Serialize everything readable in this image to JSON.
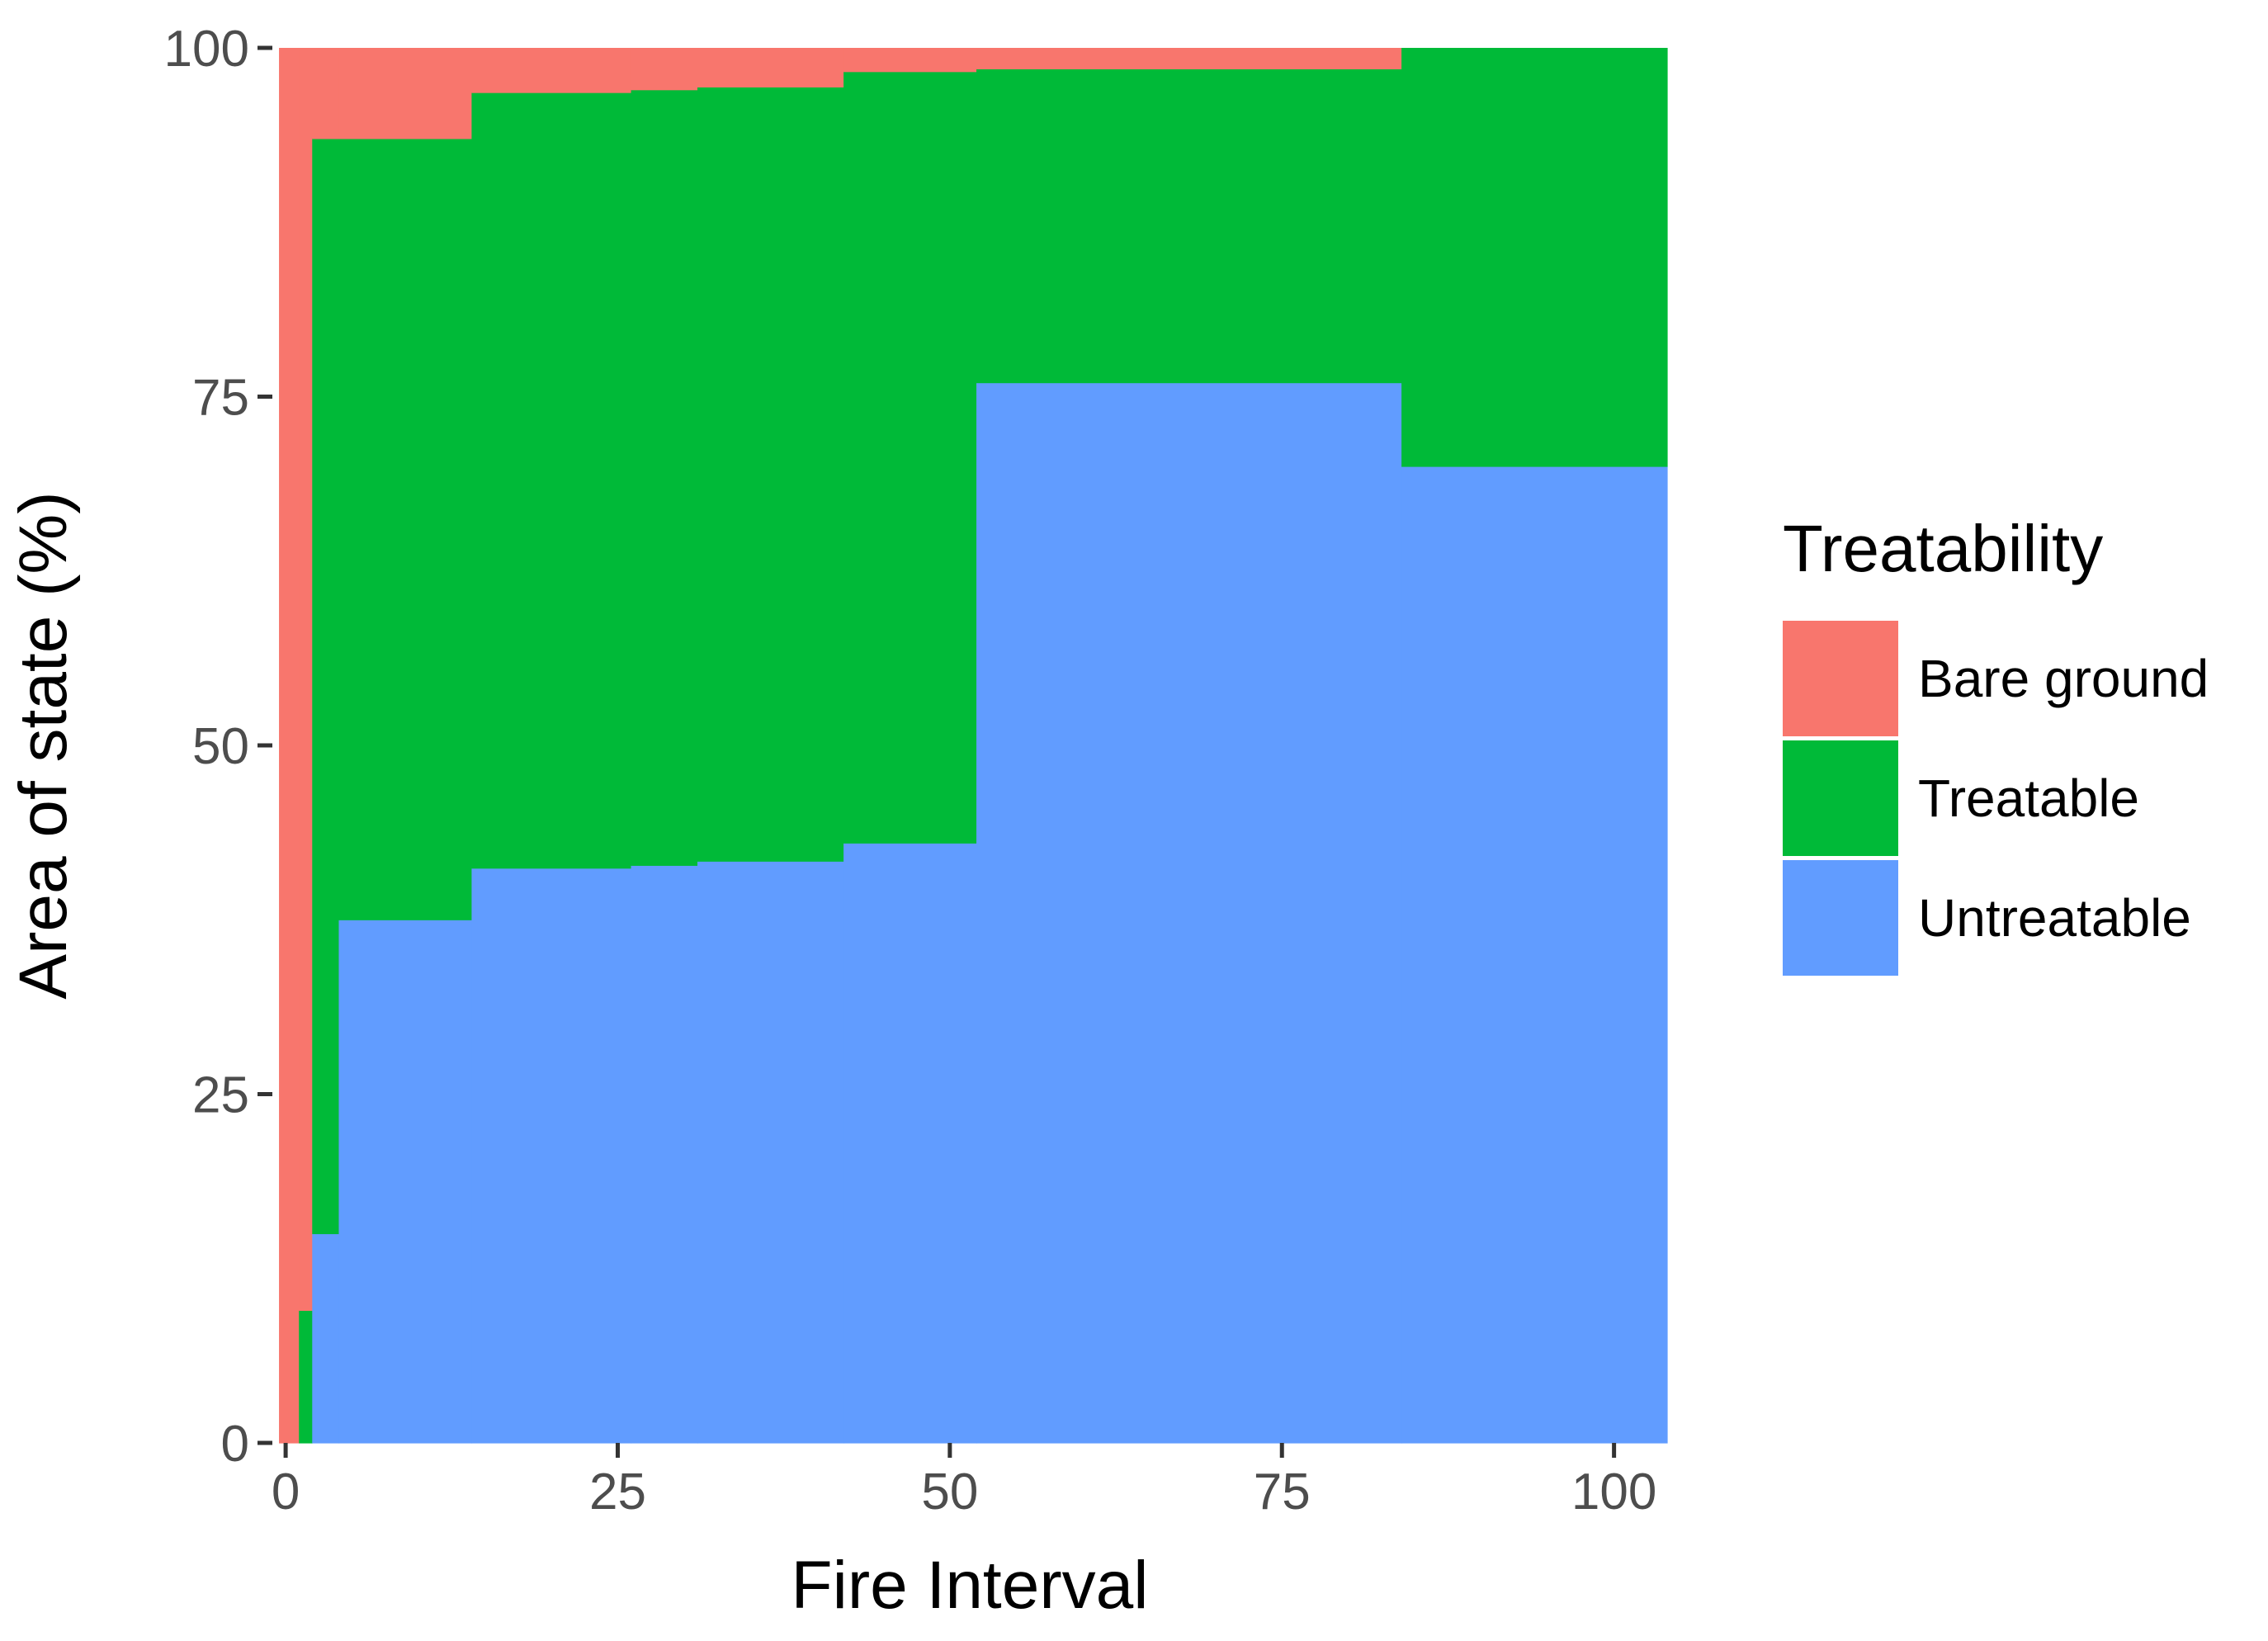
{
  "chart_data": {
    "type": "area",
    "subtype": "stacked-step",
    "xlabel": "Fire Interval",
    "ylabel": "Area of state (%)",
    "xlim": [
      -1,
      104
    ],
    "ylim": [
      0,
      100
    ],
    "x_ticks": [
      0,
      25,
      50,
      75,
      100
    ],
    "x_tick_labels": [
      "0",
      "25",
      "50",
      "75",
      "100"
    ],
    "y_ticks": [
      0,
      25,
      50,
      75,
      100
    ],
    "y_tick_labels": [
      "0",
      "25",
      "50",
      "75",
      "100"
    ],
    "grid": false,
    "legend": {
      "title": "Treatability",
      "position": "right"
    },
    "x_bins": [
      [
        -0.5,
        1
      ],
      [
        1,
        2
      ],
      [
        2,
        4
      ],
      [
        4,
        14
      ],
      [
        14,
        26
      ],
      [
        26,
        31
      ],
      [
        31,
        42
      ],
      [
        42,
        52
      ],
      [
        52,
        84
      ],
      [
        84,
        104
      ]
    ],
    "series": [
      {
        "name": "Untreatable",
        "color": "#619CFF",
        "values": [
          0,
          0,
          15,
          37.5,
          41.2,
          41.4,
          41.7,
          43,
          76,
          70
        ]
      },
      {
        "name": "Treatable",
        "color": "#00BA38",
        "values": [
          0,
          9.5,
          78.5,
          56,
          55.6,
          55.6,
          55.5,
          55.3,
          22.5,
          30
        ]
      },
      {
        "name": "Bare ground",
        "color": "#F8766D",
        "values": [
          100,
          90.5,
          6.5,
          6.5,
          3.2,
          3,
          2.8,
          1.7,
          1.5,
          0
        ]
      }
    ],
    "legend_order": [
      "Bare ground",
      "Treatable",
      "Untreatable"
    ]
  }
}
